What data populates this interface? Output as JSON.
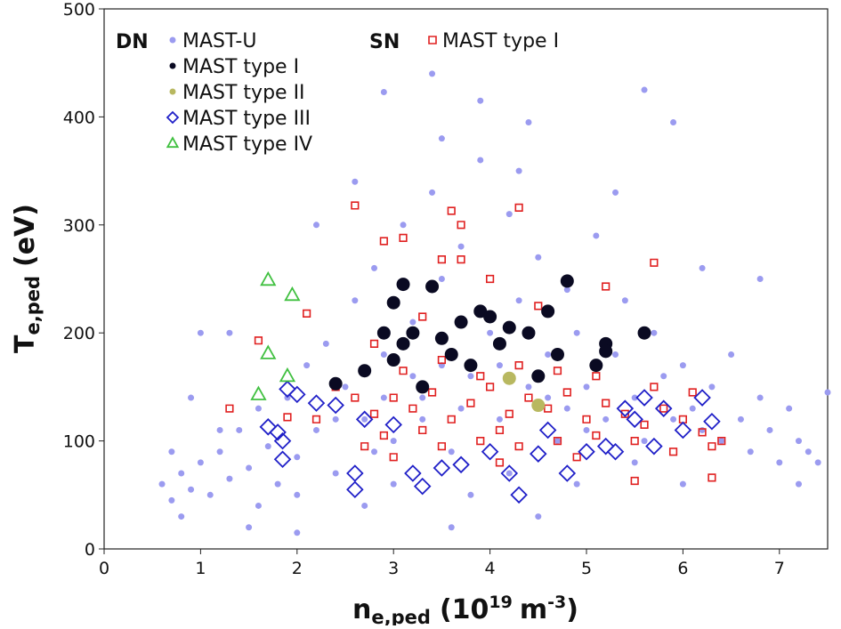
{
  "chart_data": {
    "type": "scatter",
    "xlim": [
      0,
      7.5
    ],
    "ylim": [
      0,
      500
    ],
    "xticks": [
      0,
      1,
      2,
      3,
      4,
      5,
      6,
      7
    ],
    "yticks": [
      0,
      100,
      200,
      300,
      400,
      500
    ],
    "x_label": {
      "main": "n",
      "sub": "e,ped",
      "unit": "(10",
      "unit_sup": "19",
      "unit_mid": "m",
      "unit_sup2": "-3",
      "unit_end": ")"
    },
    "y_label": {
      "main": "T",
      "sub": "e,ped",
      "unit": "(eV)"
    },
    "legend_groups": [
      "DN",
      "SN"
    ],
    "series": [
      {
        "name": "MAST-U",
        "group": 0,
        "marker": "circle",
        "color": "#9b9bf0",
        "x": [
          0.6,
          0.7,
          0.8,
          0.9,
          1.0,
          0.8,
          1.1,
          1.2,
          1.3,
          1.4,
          1.5,
          1.6,
          1.7,
          1.8,
          1.9,
          2.0,
          2.1,
          2.2,
          2.3,
          2.4,
          2.5,
          2.6,
          2.7,
          2.8,
          2.9,
          3.0,
          3.1,
          3.2,
          3.3,
          3.4,
          3.5,
          3.6,
          3.7,
          3.8,
          3.9,
          4.0,
          4.1,
          4.2,
          4.3,
          4.4,
          4.5,
          4.6,
          4.7,
          4.8,
          4.9,
          5.0,
          5.1,
          5.2,
          5.3,
          5.4,
          5.5,
          5.6,
          5.7,
          5.8,
          5.9,
          6.0,
          6.1,
          6.2,
          6.3,
          6.4,
          6.5,
          6.6,
          6.7,
          6.8,
          6.9,
          7.0,
          7.1,
          7.2,
          7.3,
          7.4,
          3.4,
          3.9,
          5.6,
          2.9,
          5.9,
          4.4,
          1.5,
          2.0,
          3.6,
          4.5,
          1.0,
          0.9,
          1.3,
          2.2,
          2.6,
          3.5,
          4.3,
          5.3,
          6.2,
          6.8,
          7.5,
          3.0,
          3.8,
          4.2,
          2.7,
          4.9,
          5.5,
          0.7,
          1.6,
          2.4,
          3.2,
          3.7,
          4.6,
          5.0,
          3.3,
          2.9,
          4.1,
          3.5,
          4.8,
          1.2,
          2.0,
          2.8,
          6.0,
          7.2
        ],
        "y": [
          60,
          45,
          70,
          55,
          80,
          30,
          50,
          90,
          65,
          110,
          75,
          130,
          95,
          60,
          140,
          85,
          170,
          110,
          190,
          70,
          150,
          230,
          120,
          260,
          180,
          100,
          300,
          210,
          140,
          330,
          250,
          90,
          280,
          160,
          360,
          200,
          120,
          310,
          230,
          150,
          270,
          180,
          100,
          240,
          200,
          150,
          290,
          120,
          180,
          230,
          140,
          100,
          200,
          160,
          120,
          170,
          130,
          110,
          150,
          100,
          180,
          120,
          90,
          140,
          110,
          80,
          130,
          100,
          90,
          80,
          440,
          415,
          425,
          423,
          395,
          395,
          20,
          15,
          20,
          30,
          200,
          140,
          200,
          300,
          340,
          380,
          350,
          330,
          260,
          250,
          145,
          60,
          50,
          70,
          40,
          60,
          80,
          90,
          40,
          120,
          160,
          130,
          140,
          110,
          120,
          140,
          170,
          170,
          130,
          110,
          50,
          90,
          60,
          60
        ]
      },
      {
        "name": "MAST type I",
        "group": 1,
        "marker": "square",
        "color": "#e02020",
        "x": [
          1.3,
          1.6,
          1.9,
          2.1,
          2.6,
          2.9,
          3.1,
          3.6,
          3.7,
          4.3,
          3.5,
          3.7,
          5.2,
          5.7,
          5.5,
          6.3,
          6.4,
          6.3,
          5.9,
          2.4,
          2.6,
          2.8,
          3.0,
          3.2,
          3.4,
          3.6,
          3.8,
          4.0,
          4.2,
          4.4,
          4.6,
          4.8,
          5.0,
          5.2,
          5.4,
          5.6,
          5.8,
          6.0,
          6.2,
          2.9,
          3.3,
          3.5,
          3.9,
          4.1,
          4.3,
          4.7,
          5.1,
          5.5,
          3.1,
          3.5,
          3.9,
          4.3,
          4.7,
          5.1,
          2.8,
          3.3,
          4.5,
          4.0,
          3.0,
          4.1,
          4.9,
          5.7,
          6.1,
          2.2,
          2.7
        ],
        "y": [
          130,
          193,
          122,
          218,
          318,
          285,
          288,
          313,
          300,
          316,
          268,
          268,
          243,
          265,
          63,
          66,
          100,
          95,
          90,
          150,
          140,
          125,
          140,
          130,
          145,
          120,
          135,
          150,
          125,
          140,
          130,
          145,
          120,
          135,
          125,
          115,
          130,
          120,
          108,
          105,
          110,
          95,
          100,
          110,
          95,
          100,
          105,
          100,
          165,
          175,
          160,
          170,
          165,
          160,
          190,
          215,
          225,
          250,
          85,
          80,
          85,
          150,
          145,
          120,
          95
        ]
      },
      {
        "name": "MAST type I",
        "group": 0,
        "marker": "dot",
        "color": "#0a0a22",
        "x": [
          3.0,
          3.1,
          3.4,
          4.8,
          4.6,
          5.6,
          5.2,
          3.2,
          2.9,
          3.5,
          3.7,
          3.9,
          4.0,
          4.2,
          4.4,
          4.1,
          3.0,
          3.6,
          3.8,
          4.7,
          5.1,
          2.7,
          3.3,
          2.4,
          4.5,
          3.1,
          5.2
        ],
        "y": [
          228,
          245,
          243,
          248,
          220,
          200,
          190,
          200,
          200,
          195,
          210,
          220,
          215,
          205,
          200,
          190,
          175,
          180,
          170,
          180,
          170,
          165,
          150,
          153,
          160,
          190,
          183
        ]
      },
      {
        "name": "MAST type II",
        "group": 0,
        "marker": "dot",
        "color": "#b8b860",
        "x": [
          4.2,
          4.5
        ],
        "y": [
          158,
          133
        ]
      },
      {
        "name": "MAST type III",
        "group": 0,
        "marker": "diamond",
        "color": "#2020c8",
        "x": [
          1.7,
          1.8,
          1.85,
          1.85,
          1.9,
          2.0,
          2.2,
          2.4,
          2.6,
          2.6,
          2.7,
          3.0,
          3.2,
          3.3,
          3.5,
          3.7,
          4.0,
          4.2,
          4.3,
          4.5,
          4.8,
          5.0,
          5.2,
          5.3,
          5.4,
          5.5,
          5.7,
          5.8,
          6.0,
          6.2,
          6.3,
          5.6,
          4.6
        ],
        "y": [
          113,
          108,
          100,
          83,
          148,
          143,
          135,
          133,
          55,
          70,
          120,
          115,
          70,
          58,
          75,
          78,
          90,
          70,
          50,
          88,
          70,
          90,
          95,
          90,
          130,
          120,
          95,
          130,
          110,
          140,
          118,
          140,
          110
        ]
      },
      {
        "name": "MAST type IV",
        "group": 0,
        "marker": "triangle",
        "color": "#40c040",
        "x": [
          1.7,
          1.95,
          1.7,
          1.9,
          1.6
        ],
        "y": [
          249,
          235,
          181,
          160,
          143
        ]
      }
    ]
  }
}
